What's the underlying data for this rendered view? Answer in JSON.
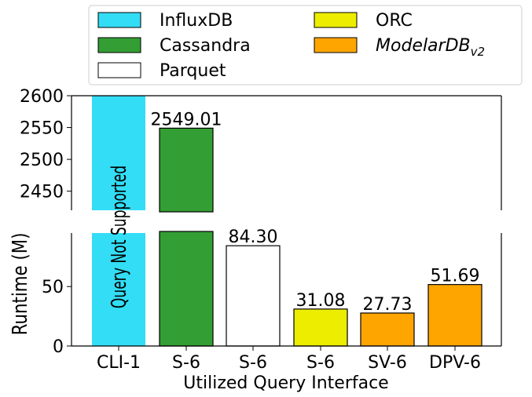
{
  "chart_data": {
    "type": "bar",
    "title": "",
    "xlabel": "Utilized Query Interface",
    "ylabel": "Runtime (M)",
    "broken_axis": true,
    "ylim_upper": [
      2420,
      2600
    ],
    "ylim_lower": [
      0,
      95
    ],
    "upper_yticks": [
      2450,
      2500,
      2550,
      2600
    ],
    "lower_yticks": [
      0,
      50
    ],
    "categories": [
      "CLI-1",
      "S-6",
      "S-6",
      "S-6",
      "SV-6",
      "DPV-6"
    ],
    "series": [
      {
        "name": "InfluxDB",
        "category_index": 0,
        "value": null,
        "label": "",
        "color": "#33ddf5"
      },
      {
        "name": "Cassandra",
        "category_index": 1,
        "value": 2549.01,
        "label": "2549.01",
        "color": "#339e33"
      },
      {
        "name": "Parquet",
        "category_index": 2,
        "value": 84.3,
        "label": "84.30",
        "color": "#ffffff"
      },
      {
        "name": "ORC",
        "category_index": 3,
        "value": 31.08,
        "label": "31.08",
        "color": "#eded00"
      },
      {
        "name": "ModelarDB",
        "name_subscript": "v2",
        "category_index": 4,
        "value": 27.73,
        "label": "27.73",
        "color": "#ffa500"
      },
      {
        "name": "ModelarDB",
        "name_subscript": "v2",
        "category_index": 5,
        "value": 51.69,
        "label": "51.69",
        "color": "#ffa500"
      }
    ],
    "annotation": "Query Not Supported",
    "legend": {
      "placement": "top",
      "columns": 2,
      "entries": [
        {
          "name": "InfluxDB",
          "color": "#33ddf5"
        },
        {
          "name": "Cassandra",
          "color": "#339e33"
        },
        {
          "name": "Parquet",
          "color": "#ffffff"
        },
        {
          "name": "ORC",
          "color": "#eded00"
        },
        {
          "name": "ModelarDB",
          "subscript": "v2",
          "italic": true,
          "color": "#ffa500"
        }
      ]
    },
    "grid": false
  }
}
